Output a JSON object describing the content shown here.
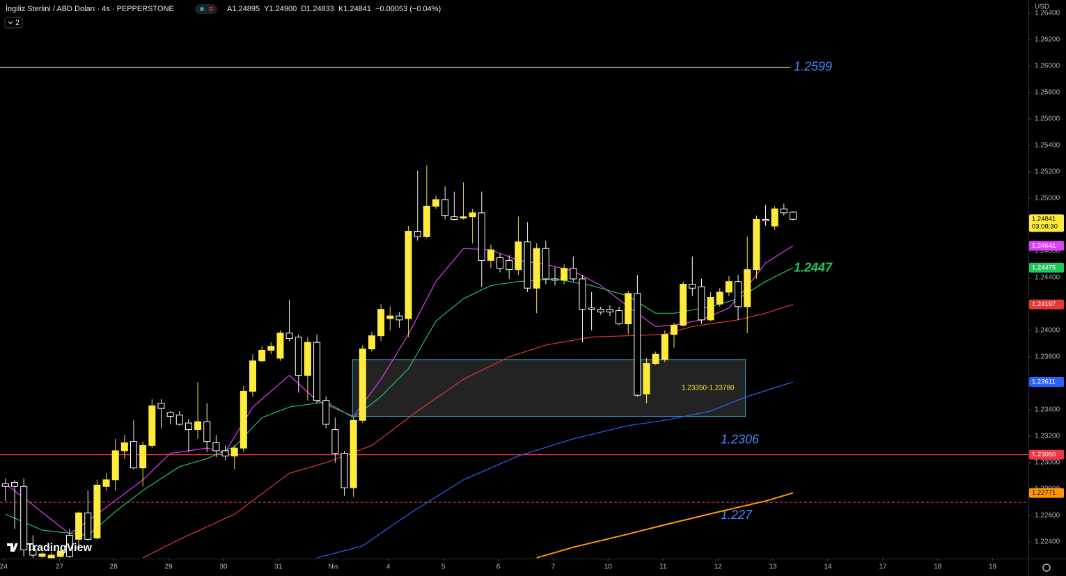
{
  "header": {
    "symbol": "İngiliz Sterlini / ABD Doları · 4s · PEPPERSTONE",
    "quote": [
      "A1.24895",
      "Y1.24900",
      "D1.24833",
      "K1.24841",
      "−0.00053 (−0.04%)"
    ],
    "indicators": "2",
    "currency": "USD",
    "countdown": "03:08:30",
    "logo": "TradingView"
  },
  "chart_data": {
    "type": "candlestick",
    "up_color": "#ffeb3b",
    "down_color": "#000000",
    "down_border": "#ffffff",
    "ohlc": {
      "open": [
        1.2284,
        1.2285,
        1.2282,
        1.2234,
        1.2229,
        1.2228,
        1.2229,
        1.2245,
        1.2242,
        1.2262,
        1.2243,
        1.2282,
        1.2287,
        1.2309,
        1.2316,
        1.2296,
        1.2313,
        1.2345,
        1.2338,
        1.2336,
        1.233,
        1.2325,
        1.2331,
        1.2315,
        1.2309,
        1.2305,
        1.2311,
        1.2354,
        1.2377,
        1.2385,
        1.2379,
        1.2398,
        1.2395,
        1.2366,
        1.2391,
        1.2347,
        1.2325,
        1.2307,
        1.2281,
        1.2332,
        1.2386,
        1.2396,
        1.2409,
        1.2411,
        1.2409,
        1.2475,
        1.2471,
        1.2494,
        1.2499,
        1.2486,
        1.2485,
        1.2486,
        1.2489,
        1.2453,
        1.2455,
        1.2453,
        1.2446,
        1.2467,
        1.2432,
        1.2462,
        1.2439,
        1.2438,
        1.2447,
        1.2439,
        1.2417,
        1.2416,
        1.2416,
        1.2415,
        1.2405,
        1.2428,
        1.2352,
        1.2375,
        1.2378,
        1.2397,
        1.2404,
        1.2435,
        1.2433,
        1.2408,
        1.242,
        1.2429,
        1.2437,
        1.2418,
        1.2446,
        1.2484,
        1.2479,
        1.2492,
        1.24895
      ],
      "high": [
        1.2288,
        1.2287,
        1.2288,
        1.2245,
        1.2232,
        1.2232,
        1.2234,
        1.225,
        1.2263,
        1.2279,
        1.2287,
        1.2292,
        1.2318,
        1.2321,
        1.2332,
        1.2316,
        1.2348,
        1.2348,
        1.2339,
        1.2339,
        1.2333,
        1.2361,
        1.2345,
        1.2321,
        1.2313,
        1.2313,
        1.2358,
        1.2382,
        1.2388,
        1.2391,
        1.24,
        1.2423,
        1.2397,
        1.2395,
        1.2397,
        1.235,
        1.2334,
        1.2309,
        1.2334,
        1.2389,
        1.2399,
        1.242,
        1.2418,
        1.2414,
        1.2479,
        1.2521,
        1.2525,
        1.2502,
        1.2509,
        1.2505,
        1.2512,
        1.2492,
        1.2505,
        1.2465,
        1.2458,
        1.2457,
        1.2486,
        1.2482,
        1.2466,
        1.2468,
        1.2448,
        1.245,
        1.2456,
        1.2442,
        1.2429,
        1.2418,
        1.2419,
        1.2418,
        1.243,
        1.2442,
        1.2379,
        1.2384,
        1.24,
        1.2406,
        1.2437,
        1.2456,
        1.2439,
        1.2429,
        1.2432,
        1.2441,
        1.2442,
        1.2471,
        1.2487,
        1.2495,
        1.2494,
        1.2496,
        1.249
      ],
      "low": [
        1.2271,
        1.225,
        1.2229,
        1.2228,
        1.2228,
        1.2228,
        1.2228,
        1.2228,
        1.2234,
        1.2241,
        1.2242,
        1.2279,
        1.2279,
        1.2303,
        1.2295,
        1.2282,
        1.2311,
        1.2326,
        1.2329,
        1.2328,
        1.2308,
        1.2318,
        1.2308,
        1.2304,
        1.2302,
        1.2295,
        1.2308,
        1.235,
        1.2376,
        1.2382,
        1.2377,
        1.2392,
        1.2353,
        1.2347,
        1.2345,
        1.2326,
        1.23,
        1.2275,
        1.2274,
        1.233,
        1.2384,
        1.2392,
        1.24,
        1.2402,
        1.2395,
        1.2468,
        1.247,
        1.2492,
        1.2484,
        1.2483,
        1.2484,
        1.2466,
        1.2433,
        1.2447,
        1.2444,
        1.2439,
        1.2442,
        1.2429,
        1.2413,
        1.2435,
        1.2434,
        1.2435,
        1.2437,
        1.2391,
        1.24,
        1.2412,
        1.2411,
        1.2404,
        1.2397,
        1.235,
        1.2345,
        1.2374,
        1.2376,
        1.2387,
        1.2403,
        1.2426,
        1.2405,
        1.2407,
        1.2418,
        1.2426,
        1.2408,
        1.2398,
        1.2439,
        1.2479,
        1.2476,
        1.2487,
        1.24833
      ],
      "close": [
        1.2282,
        1.2282,
        1.2234,
        1.223,
        1.2231,
        1.223,
        1.2233,
        1.2229,
        1.2262,
        1.2242,
        1.2283,
        1.2287,
        1.2309,
        1.2315,
        1.2296,
        1.2313,
        1.2343,
        1.2341,
        1.2335,
        1.2329,
        1.2325,
        1.2331,
        1.2316,
        1.2309,
        1.2305,
        1.2311,
        1.2354,
        1.2377,
        1.2385,
        1.2388,
        1.2398,
        1.2394,
        1.2366,
        1.2391,
        1.2347,
        1.2329,
        1.2307,
        1.2281,
        1.2332,
        1.2386,
        1.2396,
        1.2416,
        1.2411,
        1.2408,
        1.2475,
        1.2471,
        1.2494,
        1.2499,
        1.2487,
        1.2484,
        1.2486,
        1.2489,
        1.2453,
        1.2461,
        1.2447,
        1.2446,
        1.2467,
        1.2432,
        1.2462,
        1.2439,
        1.2438,
        1.2447,
        1.2439,
        1.2416,
        1.2416,
        1.2414,
        1.2414,
        1.2405,
        1.2428,
        1.2351,
        1.2375,
        1.2382,
        1.2397,
        1.2404,
        1.2435,
        1.2432,
        1.2408,
        1.2425,
        1.2429,
        1.2437,
        1.2418,
        1.2446,
        1.2484,
        1.2483,
        1.2492,
        1.2489,
        1.24841
      ]
    },
    "series": [
      {
        "color": "#e040fb",
        "x": [
          0,
          3,
          7,
          10,
          15,
          18,
          22,
          24,
          27,
          31,
          34,
          38,
          41,
          44,
          47,
          50,
          53,
          56,
          59,
          62,
          65,
          68,
          71,
          73,
          76,
          79,
          81,
          83,
          86
        ],
        "values": [
          1.2284,
          1.2268,
          1.2246,
          1.2261,
          1.2287,
          1.2307,
          1.2311,
          1.2308,
          1.2342,
          1.2366,
          1.2347,
          1.2335,
          1.2363,
          1.2397,
          1.2437,
          1.2462,
          1.2461,
          1.2453,
          1.245,
          1.2445,
          1.2434,
          1.2418,
          1.2403,
          1.2404,
          1.2408,
          1.2417,
          1.2433,
          1.2451,
          1.24641
        ]
      },
      {
        "color": "#22c55e",
        "x": [
          0,
          4,
          9,
          12,
          15,
          19,
          22,
          25,
          28,
          31,
          35,
          38,
          41,
          44,
          47,
          50,
          53,
          56,
          60,
          64,
          68,
          71,
          73,
          77,
          80,
          83,
          86
        ],
        "values": [
          1.2261,
          1.2249,
          1.2245,
          1.2263,
          1.2279,
          1.2297,
          1.2303,
          1.2312,
          1.2334,
          1.2342,
          1.2346,
          1.2334,
          1.235,
          1.2371,
          1.2407,
          1.2424,
          1.2434,
          1.2437,
          1.2439,
          1.2434,
          1.2426,
          1.2413,
          1.2413,
          1.2418,
          1.2424,
          1.2437,
          1.24475
        ]
      },
      {
        "color": "#e53935",
        "x": [
          15,
          19,
          25,
          31,
          35,
          40,
          45,
          50,
          55,
          59,
          64,
          68,
          72,
          75,
          80,
          83,
          86
        ],
        "values": [
          1.2228,
          1.2242,
          1.2261,
          1.2292,
          1.23,
          1.2313,
          1.2339,
          1.2363,
          1.238,
          1.2389,
          1.2395,
          1.2396,
          1.2397,
          1.2403,
          1.2408,
          1.2413,
          1.24197
        ]
      },
      {
        "color": "#2962ff",
        "x": [
          34,
          39,
          44,
          50,
          56,
          62,
          68,
          72,
          77,
          81,
          86
        ],
        "values": [
          1.2228,
          1.2237,
          1.2261,
          1.2287,
          1.2305,
          1.2318,
          1.2328,
          1.2332,
          1.2339,
          1.235,
          1.23611
        ]
      },
      {
        "color": "#ff9800",
        "x": [
          58,
          62,
          68,
          72,
          78,
          83,
          86
        ],
        "values": [
          1.2228,
          1.2236,
          1.2246,
          1.2253,
          1.2263,
          1.2271,
          1.22771
        ]
      }
    ],
    "levels": [
      {
        "value": 1.2599,
        "label": "1.2599",
        "color": "#e0e0e0",
        "text_color": "#448aff"
      },
      {
        "value": 1.2306,
        "label": "1.2306",
        "axis_label": "1.23060",
        "color": "#f23645",
        "text_color": "#448aff"
      },
      {
        "value": 1.227,
        "label": "1.227",
        "color": "#f23645",
        "dashed": true,
        "text_color": "#448aff"
      }
    ],
    "annotations": [
      {
        "text": "1.2447",
        "value": 1.2447,
        "color": "#22c55e"
      }
    ],
    "zone": {
      "low": 1.2335,
      "high": 1.2378,
      "x": [
        37.9,
        80.8
      ],
      "label": "1.23350-1.23780",
      "border": "#2fa0c8",
      "text_color": "#ffeb3b"
    },
    "xlim": [
      -0.6,
      111.7
    ],
    "xticks": [
      {
        "value": -0.2,
        "label": "24"
      },
      {
        "value": 5.9,
        "label": "27"
      },
      {
        "value": 11.8,
        "label": "28"
      },
      {
        "value": 17.8,
        "label": "29"
      },
      {
        "value": 23.8,
        "label": "30"
      },
      {
        "value": 29.8,
        "label": "31"
      },
      {
        "value": 35.8,
        "label": "Nis"
      },
      {
        "value": 41.8,
        "label": "4"
      },
      {
        "value": 47.8,
        "label": "5"
      },
      {
        "value": 53.8,
        "label": "6"
      },
      {
        "value": 59.8,
        "label": "7"
      },
      {
        "value": 65.8,
        "label": "10"
      },
      {
        "value": 71.8,
        "label": "11"
      },
      {
        "value": 77.8,
        "label": "12"
      },
      {
        "value": 83.8,
        "label": "13"
      },
      {
        "value": 89.8,
        "label": "14"
      },
      {
        "value": 95.8,
        "label": "17"
      },
      {
        "value": 101.8,
        "label": "18"
      },
      {
        "value": 107.8,
        "label": "19"
      }
    ],
    "ylim": [
      1.22274,
      1.265
    ],
    "yticks": [
      {
        "value": 1.224,
        "label": "1.22400"
      },
      {
        "value": 1.226,
        "label": "1.22600"
      },
      {
        "value": 1.228,
        "label": "1.22800"
      },
      {
        "value": 1.23,
        "label": "1.23000"
      },
      {
        "value": 1.232,
        "label": "1.23200"
      },
      {
        "value": 1.234,
        "label": "1.23400"
      },
      {
        "value": 1.236,
        "label": "1.23600"
      },
      {
        "value": 1.238,
        "label": "1.23800"
      },
      {
        "value": 1.24,
        "label": "1.24000"
      },
      {
        "value": 1.242,
        "label": "1.24200"
      },
      {
        "value": 1.244,
        "label": "1.24400"
      },
      {
        "value": 1.246,
        "label": "1.24600"
      },
      {
        "value": 1.248,
        "label": "1.24800"
      },
      {
        "value": 1.25,
        "label": "1.25000"
      },
      {
        "value": 1.252,
        "label": "1.25200"
      },
      {
        "value": 1.254,
        "label": "1.25400"
      },
      {
        "value": 1.256,
        "label": "1.25600"
      },
      {
        "value": 1.258,
        "label": "1.25800"
      },
      {
        "value": 1.26,
        "label": "1.26000"
      },
      {
        "value": 1.262,
        "label": "1.26200"
      },
      {
        "value": 1.264,
        "label": "1.26400"
      }
    ],
    "grid": false
  }
}
